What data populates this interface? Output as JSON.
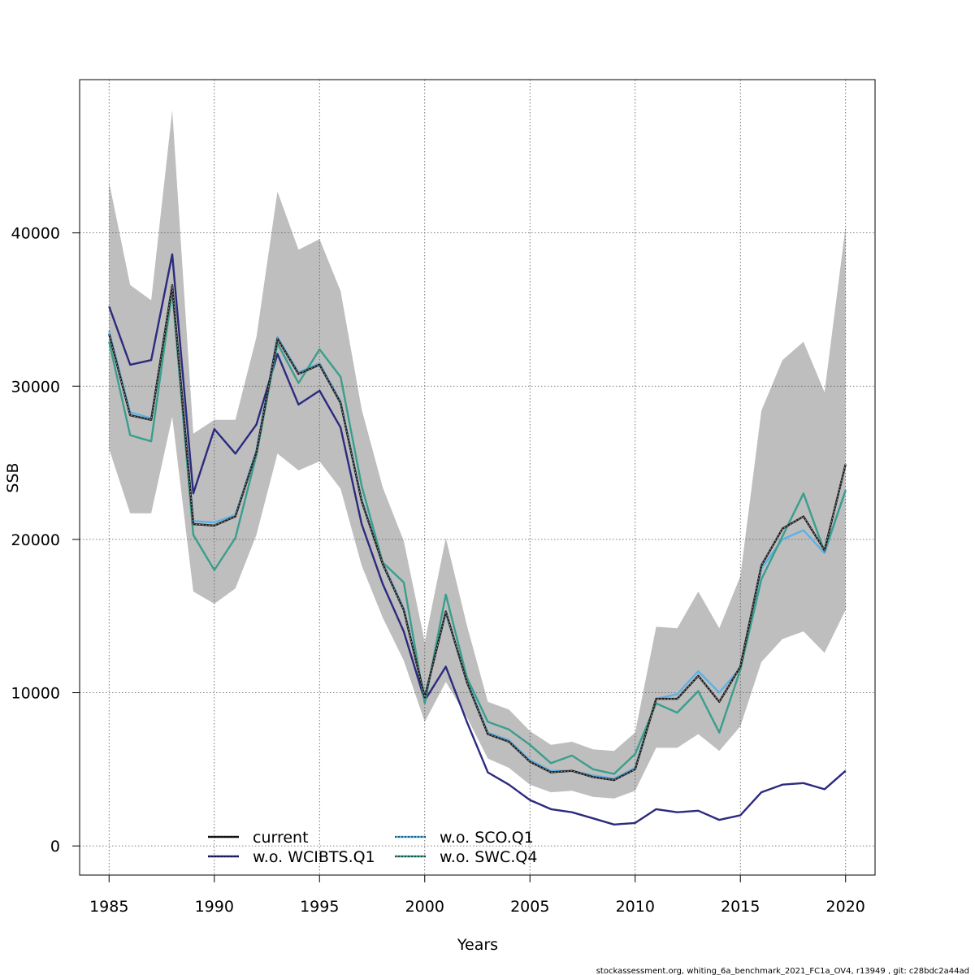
{
  "chart_data": {
    "type": "line",
    "xlabel": "Years",
    "ylabel": "SSB",
    "xlim": [
      1983.6,
      2021.4
    ],
    "ylim": [
      -1900,
      50000
    ],
    "xticks": [
      1985,
      1990,
      1995,
      2000,
      2005,
      2010,
      2015,
      2020
    ],
    "yticks": [
      0,
      10000,
      20000,
      30000,
      40000
    ],
    "grid": true,
    "legend_position": "bottom-center",
    "x": [
      1985,
      1986,
      1987,
      1988,
      1989,
      1990,
      1991,
      1992,
      1993,
      1994,
      1995,
      1996,
      1997,
      1998,
      1999,
      2000,
      2001,
      2002,
      2003,
      2004,
      2005,
      2006,
      2007,
      2008,
      2009,
      2010,
      2011,
      2012,
      2013,
      2014,
      2015,
      2016,
      2017,
      2018,
      2019,
      2020
    ],
    "band": {
      "fill": "#bebebe",
      "upper": [
        43300,
        36600,
        35600,
        48000,
        26900,
        27800,
        27800,
        33200,
        42700,
        38900,
        39600,
        36200,
        28500,
        23400,
        19900,
        13300,
        20100,
        14400,
        9400,
        8900,
        7500,
        6600,
        6800,
        6300,
        6200,
        7400,
        14300,
        14200,
        16600,
        14200,
        17600,
        28400,
        31700,
        32900,
        29600,
        40400
      ],
      "lower": [
        25900,
        21700,
        21700,
        28000,
        16600,
        15800,
        16800,
        20300,
        25600,
        24500,
        25100,
        23300,
        18300,
        14900,
        12100,
        8100,
        10700,
        8400,
        5700,
        5100,
        4000,
        3500,
        3600,
        3200,
        3100,
        3600,
        6400,
        6400,
        7300,
        6200,
        7800,
        12000,
        13500,
        14000,
        12600,
        15400
      ]
    },
    "series": [
      {
        "name": "current",
        "color": "#1a1a1a",
        "dashed": true,
        "values": [
          33400,
          28100,
          27800,
          36600,
          21000,
          20900,
          21500,
          25700,
          33100,
          30800,
          31400,
          28900,
          22500,
          18400,
          15400,
          9700,
          15300,
          10700,
          7300,
          6800,
          5500,
          4800,
          4900,
          4500,
          4300,
          5000,
          9600,
          9600,
          11100,
          9400,
          11700,
          18300,
          20700,
          21500,
          19300,
          24900
        ]
      },
      {
        "name": "w.o. WCIBTS.Q1",
        "color": "#2b2a7f",
        "dashed": false,
        "values": [
          35200,
          31400,
          31700,
          38600,
          23000,
          27200,
          25600,
          27500,
          32100,
          28800,
          29700,
          27300,
          21000,
          17100,
          14000,
          9500,
          11700,
          8100,
          4800,
          4000,
          3000,
          2400,
          2200,
          1800,
          1400,
          1500,
          2400,
          2200,
          2300,
          1700,
          2000,
          3500,
          4000,
          4100,
          3700,
          4900
        ]
      },
      {
        "name": "w.o. SCO.Q1",
        "color": "#5eb1e6",
        "dashed": false,
        "values": [
          33600,
          28300,
          27900,
          36300,
          21200,
          21100,
          21600,
          25800,
          33200,
          30900,
          31500,
          29000,
          22600,
          18500,
          15500,
          9800,
          15200,
          10800,
          7400,
          6900,
          5600,
          4900,
          4900,
          4600,
          4400,
          5100,
          9600,
          9900,
          11400,
          10000,
          11600,
          18100,
          20000,
          20600,
          19100,
          23200
        ]
      },
      {
        "name": "w.o. SWC.Q4",
        "color": "#3a9e8c",
        "dashed": false,
        "values": [
          32900,
          26800,
          26400,
          36200,
          20300,
          18000,
          20100,
          25500,
          32800,
          30200,
          32400,
          30600,
          23500,
          18500,
          17200,
          9300,
          16400,
          11000,
          8100,
          7600,
          6600,
          5400,
          5900,
          5000,
          4700,
          6000,
          9300,
          8700,
          10100,
          7400,
          11500,
          17400,
          20200,
          23000,
          19200,
          23200
        ]
      }
    ],
    "legend": [
      {
        "label": "current",
        "color": "#1a1a1a",
        "col": 0,
        "row": 0
      },
      {
        "label": "w.o. WCIBTS.Q1",
        "color": "#2b2a7f",
        "col": 0,
        "row": 1
      },
      {
        "label": "w.o. SCO.Q1",
        "color": "#5eb1e6",
        "col": 1,
        "row": 0
      },
      {
        "label": "w.o. SWC.Q4",
        "color": "#3a9e8c",
        "col": 1,
        "row": 1
      }
    ],
    "credit": "stockassessment.org, whiting_6a_benchmark_2021_FC1a_OV4, r13949 , git: c28bdc2a44ad"
  }
}
